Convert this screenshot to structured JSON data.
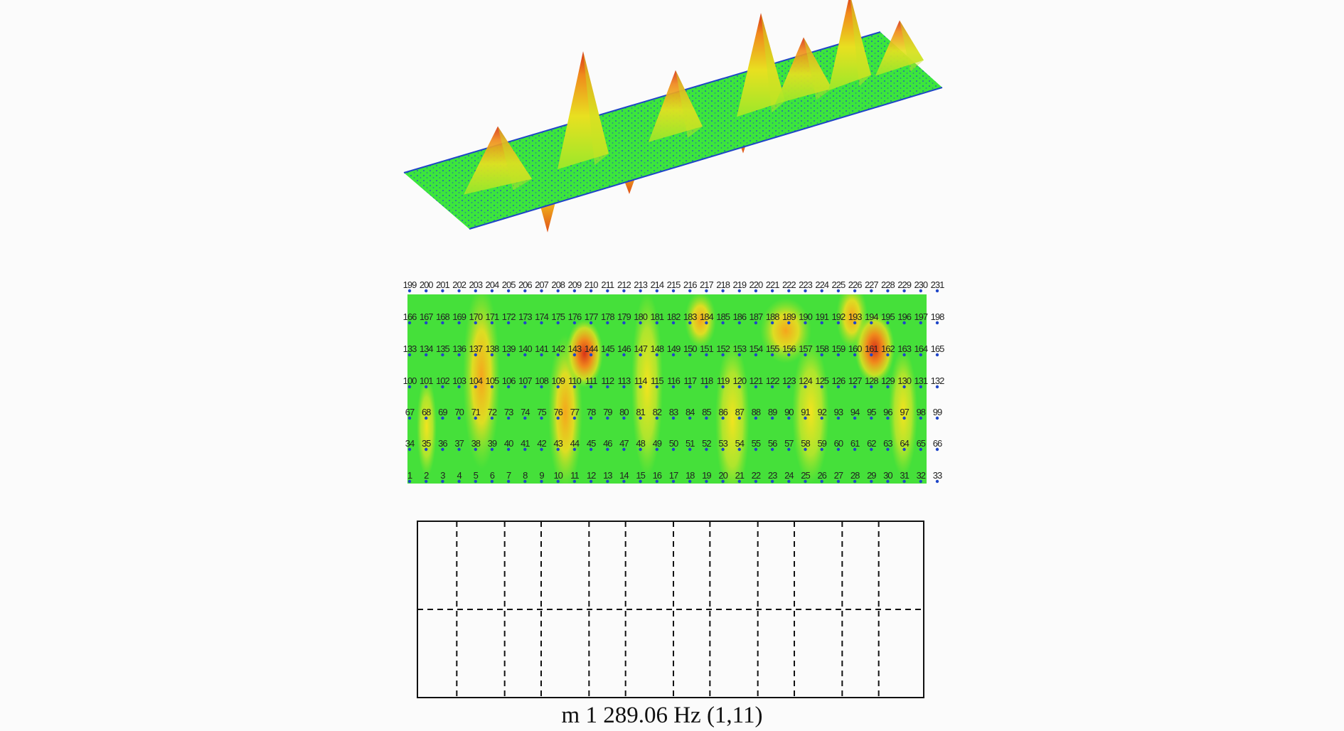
{
  "figure": {
    "caption": "m 1 289.06 Hz (1,11)",
    "mode": {
      "order": [
        1,
        11
      ],
      "frequency_hz": 289.06
    },
    "colors": {
      "background": "#fbfbfb",
      "surface_base": "#33e640",
      "surface_low": "#9ae82a",
      "surface_mid": "#e8e020",
      "surface_high": "#f08a1c",
      "surface_peak": "#d83318",
      "mesh_nodes": "#1f45c8",
      "grid_lines": "#111111"
    },
    "node_grid": {
      "rows": [
        {
          "start": 199,
          "end": 231
        },
        {
          "start": 166,
          "end": 198
        },
        {
          "start": 133,
          "end": 165
        },
        {
          "start": 100,
          "end": 132
        },
        {
          "start": 67,
          "end": 99
        },
        {
          "start": 34,
          "end": 66
        },
        {
          "start": 1,
          "end": 33
        }
      ]
    },
    "nodal_lines": {
      "horizontal": 1,
      "vertical": 11
    }
  }
}
